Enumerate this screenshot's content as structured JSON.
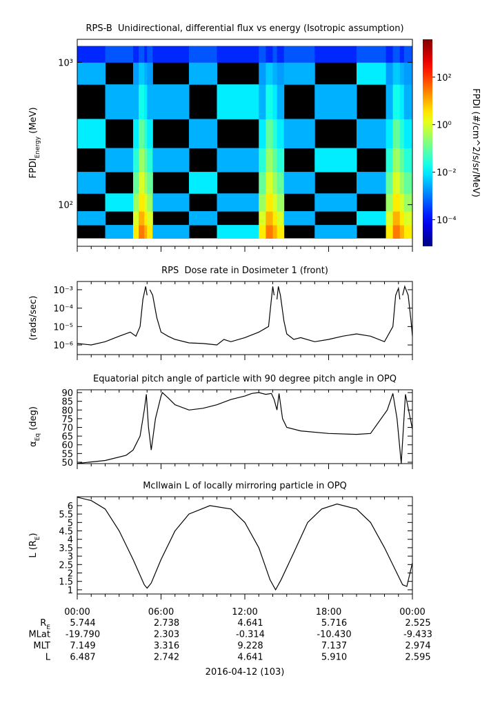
{
  "chart_data": [
    {
      "type": "heatmap",
      "title": "RPS-B  Unidirectional, differential flux vs energy (Isotropic assumption)",
      "ylabel": [
        {
          "text": "FPDI"
        },
        {
          "text": "Energy",
          "sub": true
        },
        {
          "text": " (MeV)"
        }
      ],
      "zlabel": "FPDI (#/cm^2/s/sr/MeV)",
      "x": [
        0,
        2,
        4,
        4.4,
        4.8,
        5.0,
        5.4,
        8,
        10,
        13,
        13.5,
        14,
        14.3,
        14.8,
        17,
        20,
        22.1,
        22.6,
        23.1,
        23.4,
        24
      ],
      "y": [
        58,
        72,
        90,
        120,
        170,
        250,
        400,
        700,
        1000,
        1300
      ],
      "z": [
        [
          null,
          0.003,
          3,
          30,
          10,
          3,
          0.003,
          null,
          0.01,
          3,
          30,
          10,
          3,
          null,
          0.003,
          null,
          3,
          30,
          10,
          3
        ],
        [
          0.003,
          null,
          1,
          10,
          3,
          1,
          null,
          0.003,
          null,
          1,
          10,
          3,
          1,
          0.003,
          null,
          0.01,
          1,
          10,
          3,
          1
        ],
        [
          null,
          0.01,
          0.3,
          3,
          1,
          0.3,
          0.003,
          null,
          0.003,
          0.3,
          3,
          1,
          0.3,
          null,
          0.003,
          null,
          0.3,
          3,
          1,
          0.3
        ],
        [
          0.003,
          null,
          0.1,
          1,
          0.3,
          0.1,
          null,
          0.01,
          null,
          0.1,
          1,
          0.3,
          0.1,
          0.003,
          null,
          0.003,
          0.1,
          1,
          0.3,
          0.1
        ],
        [
          null,
          0.003,
          0.03,
          0.3,
          0.1,
          0.03,
          0.003,
          null,
          0.003,
          0.03,
          0.3,
          0.1,
          0.03,
          null,
          0.01,
          null,
          0.03,
          0.3,
          0.1,
          0.03
        ],
        [
          0.01,
          null,
          0.01,
          0.1,
          0.03,
          0.01,
          null,
          0.003,
          null,
          0.01,
          0.1,
          0.03,
          0.01,
          0.003,
          null,
          0.003,
          0.01,
          0.1,
          0.03,
          0.01
        ],
        [
          null,
          0.003,
          0.003,
          0.02,
          0.01,
          0.003,
          0.003,
          null,
          0.01,
          0.003,
          0.02,
          0.01,
          0.003,
          null,
          0.003,
          null,
          0.003,
          0.02,
          0.01,
          0.003
        ],
        [
          0.003,
          null,
          0.002,
          0.005,
          0.003,
          0.002,
          null,
          0.003,
          null,
          0.002,
          0.005,
          0.003,
          0.002,
          0.003,
          null,
          0.01,
          0.002,
          0.005,
          0.003,
          0.002
        ],
        [
          0.0002,
          0.0005,
          0.0002,
          0.0005,
          0.0002,
          0.0005,
          0.0002,
          0.0005,
          0.0002,
          0.0005,
          0.0002,
          0.0005,
          0.0002,
          0.0005,
          0.0002,
          0.0005,
          0.0002,
          0.0005,
          0.0002,
          0.0005
        ]
      ],
      "log_y": true,
      "ylim": [
        51,
        1450
      ],
      "yticks": [
        {
          "value": 100,
          "label": "10²"
        },
        {
          "value": 1000,
          "label": "10³"
        }
      ],
      "zlim": [
        7.6e-06,
        3900
      ],
      "zticks": [
        {
          "value": 0.0001,
          "label": "10⁻⁴"
        },
        {
          "value": 0.01,
          "label": "10⁻²"
        },
        {
          "value": 1,
          "label": "10⁰"
        },
        {
          "value": 100,
          "label": "10²"
        }
      ],
      "xlim": [
        0,
        24
      ],
      "xticks": [
        0,
        6,
        12,
        18,
        24
      ],
      "minor_step": 1
    },
    {
      "type": "line",
      "title": "RPS  Dose rate in Dosimeter 1 (front)",
      "ylabel": [
        {
          "text": "(rads/sec)"
        }
      ],
      "color": "#000000",
      "x": [
        0,
        1,
        2,
        3,
        3.8,
        4.2,
        4.5,
        4.7,
        4.9,
        5.0,
        5.05,
        5.2,
        5.4,
        5.7,
        6,
        6.5,
        7,
        8,
        9,
        10,
        10.5,
        11,
        12,
        13,
        13.7,
        13.9,
        14.0,
        14.1,
        14.2,
        14.3,
        14.4,
        14.55,
        14.8,
        15,
        15.5,
        16,
        17,
        18,
        19,
        20,
        21,
        22,
        22.6,
        22.8,
        23.0,
        23.1,
        23.15,
        23.3,
        23.45,
        23.7,
        23.9,
        24
      ],
      "values": [
        1.2e-06,
        1e-06,
        1.5e-06,
        3e-06,
        5e-06,
        3e-06,
        1e-05,
        0.0003,
        0.0015,
        0.0005,
        null,
        0.001,
        0.0005,
        3e-05,
        5e-06,
        3e-06,
        2e-06,
        1.3e-06,
        1.2e-06,
        1e-06,
        2e-06,
        1.5e-06,
        2.5e-06,
        5e-06,
        1e-05,
        0.0003,
        0.0015,
        0.0005,
        null,
        0.0003,
        0.0015,
        0.0005,
        2e-05,
        4e-06,
        2e-06,
        2.5e-06,
        1.5e-06,
        2e-06,
        3e-06,
        4e-06,
        3e-06,
        1.5e-06,
        1e-05,
        0.0005,
        0.0012,
        0.0003,
        null,
        0.0005,
        0.0015,
        0.0005,
        2e-05,
        3e-06
      ],
      "log_y": true,
      "ylim": [
        3e-07,
        0.0028
      ],
      "yticks": [
        {
          "value": 1e-06,
          "label": "10⁻⁶"
        },
        {
          "value": 1e-05,
          "label": "10⁻⁵"
        },
        {
          "value": 0.0001,
          "label": "10⁻⁴"
        },
        {
          "value": 0.001,
          "label": "10⁻³"
        }
      ],
      "xlim": [
        0,
        24
      ],
      "xticks": [
        0,
        6,
        12,
        18,
        24
      ],
      "minor_step": 1
    },
    {
      "type": "line",
      "title": "Equatorial pitch angle of particle with 90 degree pitch angle in OPQ",
      "ylabel": [
        {
          "text": "α"
        },
        {
          "text": "Eq",
          "sub": true
        },
        {
          "text": " (deg)"
        }
      ],
      "color": "#000000",
      "x": [
        0,
        2,
        3.5,
        4,
        4.5,
        4.8,
        4.95,
        5.1,
        5.3,
        5.6,
        6,
        6.1,
        6.5,
        7,
        8,
        9,
        10,
        11,
        12,
        12.5,
        13,
        13.5,
        13.9,
        14.1,
        14.3,
        14.45,
        14.7,
        15,
        16,
        18,
        20,
        21,
        22.2,
        22.6,
        22.9,
        23.2,
        23.5,
        24
      ],
      "values": [
        49.3,
        51,
        54,
        57,
        65,
        80,
        89,
        70,
        57,
        75,
        88,
        90,
        87,
        83,
        80,
        81,
        83,
        86,
        88,
        89.5,
        90,
        89,
        89.5,
        86,
        80,
        89.5,
        75,
        70,
        68,
        66.5,
        66,
        66.5,
        80,
        89.5,
        75,
        49.3,
        89,
        69
      ],
      "ylim": [
        49.2,
        91.6
      ],
      "yticks": [
        50,
        55,
        60,
        65,
        70,
        75,
        80,
        85,
        90
      ],
      "xlim": [
        0,
        24
      ],
      "xticks": [
        0,
        6,
        12,
        18,
        24
      ],
      "minor_step": 1
    },
    {
      "type": "line",
      "title": "McIlwain L of locally mirroring particle in OPQ",
      "ylabel": [
        {
          "text": "L (R"
        },
        {
          "text": "E",
          "sub": true
        },
        {
          "text": ")"
        }
      ],
      "color": "#000000",
      "x": [
        0,
        1,
        2,
        3,
        4,
        4.8,
        5,
        5.3,
        6,
        7,
        8,
        9.5,
        11,
        12,
        13,
        13.8,
        14.2,
        14.6,
        15.5,
        16.5,
        17.5,
        18.6,
        20,
        21,
        22,
        23,
        23.3,
        23.6,
        24
      ],
      "values": [
        6.5,
        6.3,
        5.8,
        4.5,
        2.8,
        1.3,
        1.1,
        1.4,
        2.8,
        4.5,
        5.5,
        6.0,
        5.8,
        5.0,
        3.5,
        1.6,
        1.0,
        1.6,
        3.2,
        5.0,
        5.8,
        6.1,
        5.8,
        5.0,
        3.5,
        1.8,
        1.3,
        1.2,
        2.6
      ],
      "ylim": [
        0.75,
        6.53
      ],
      "yticks": [
        1,
        1.5,
        2,
        2.5,
        3,
        3.5,
        4,
        4.5,
        5,
        5.5,
        6
      ],
      "xlim": [
        0,
        24
      ],
      "xticks": [
        {
          "value": 0,
          "label": "00:00"
        },
        {
          "value": 6,
          "label": "06:00"
        },
        {
          "value": 12,
          "label": "12:00"
        },
        {
          "value": 18,
          "label": "18:00"
        },
        {
          "value": 24,
          "label": "00:00"
        }
      ],
      "minor_step": 1
    }
  ],
  "ephemeris": {
    "rows": [
      {
        "label": [
          {
            "text": "R"
          },
          {
            "text": "E",
            "sub": true
          }
        ],
        "values": [
          "5.744",
          "2.738",
          "4.641",
          "5.716",
          "2.525"
        ]
      },
      {
        "label": [
          {
            "text": "MLat"
          }
        ],
        "values": [
          "-19.790",
          "2.303",
          "-0.314",
          "-10.430",
          "-9.433"
        ]
      },
      {
        "label": [
          {
            "text": "MLT"
          }
        ],
        "values": [
          "7.149",
          "3.316",
          "9.228",
          "7.137",
          "2.974"
        ]
      },
      {
        "label": [
          {
            "text": "L"
          }
        ],
        "values": [
          "6.487",
          "2.742",
          "4.641",
          "5.910",
          "2.595"
        ]
      }
    ],
    "date": "2016-04-12 (103)"
  }
}
